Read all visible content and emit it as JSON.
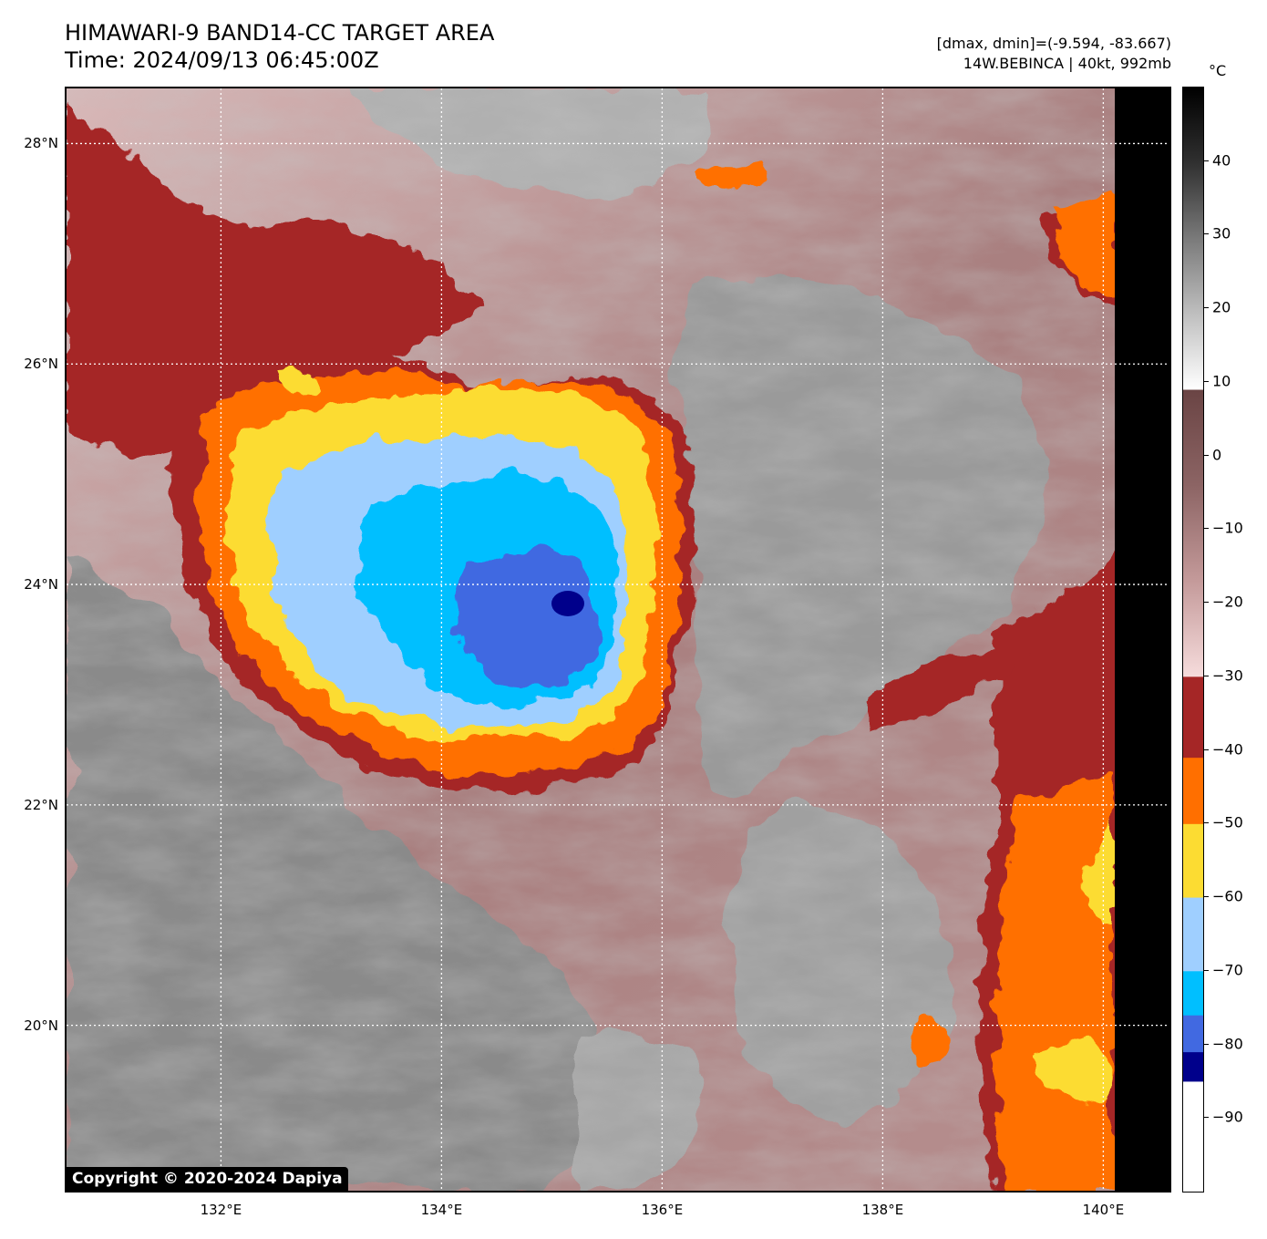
{
  "header": {
    "title_line1": "HIMAWARI-9 BAND14-CC TARGET AREA",
    "title_line2": "Time: 2024/09/13 06:45:00Z",
    "meta_line1": "[dmax, dmin]=(-9.594, -83.667)",
    "meta_line2": "14W.BEBINCA | 40kt, 992mb"
  },
  "map": {
    "copyright": "Copyright © 2020-2024 Dapiya",
    "lat_ticks": [
      "28°N",
      "26°N",
      "24°N",
      "22°N",
      "20°N"
    ],
    "lat_values": [
      28,
      26,
      24,
      22,
      20
    ],
    "lon_ticks": [
      "132°E",
      "134°E",
      "136°E",
      "138°E",
      "140°E"
    ],
    "lon_values": [
      132,
      134,
      136,
      138,
      140
    ],
    "lat_range": [
      18.5,
      28.5
    ],
    "lon_range": [
      130.6,
      140.6
    ],
    "gridlines": "dotted-white",
    "storm_center": {
      "lat": 23.8,
      "lon": 135.2
    }
  },
  "colorbar": {
    "unit": "°C",
    "range": [
      -100,
      50
    ],
    "ticks": [
      "40",
      "30",
      "20",
      "10",
      "0",
      "−10",
      "−20",
      "−30",
      "−40",
      "−50",
      "−60",
      "−70",
      "−80",
      "−90"
    ],
    "tick_values": [
      40,
      30,
      20,
      10,
      0,
      -10,
      -20,
      -30,
      -40,
      -50,
      -60,
      -70,
      -80,
      -90
    ],
    "segments": [
      {
        "from": -100,
        "to": -85,
        "color": "#ffffff"
      },
      {
        "from": -85,
        "to": -81,
        "color": "#00008b"
      },
      {
        "from": -81,
        "to": -76,
        "color": "#4169e1"
      },
      {
        "from": -76,
        "to": -70,
        "color": "#00bfff"
      },
      {
        "from": -70,
        "to": -60,
        "color": "#9fcfff"
      },
      {
        "from": -60,
        "to": -50,
        "color": "#fcdc32"
      },
      {
        "from": -50,
        "to": -41,
        "color": "#ff6f00"
      },
      {
        "from": -41,
        "to": -30,
        "color": "#a52626"
      },
      {
        "from": -30,
        "to": 9,
        "gradient": [
          "#f6dcdc",
          "#c49a9a",
          "#8c6464",
          "#6a4444"
        ]
      },
      {
        "from": 9,
        "to": 50,
        "gradient": [
          "#ffffff",
          "#bfbfbf",
          "#7a7a7a",
          "#303030",
          "#000000"
        ]
      }
    ]
  }
}
